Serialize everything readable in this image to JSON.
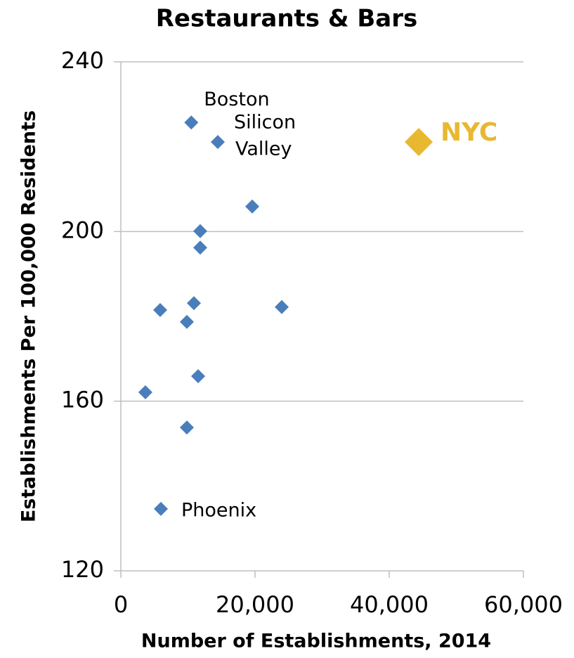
{
  "chart_data": {
    "type": "scatter",
    "title": "Restaurants & Bars",
    "xlabel": "Number of Establishments, 2014",
    "ylabel": "Establishments Per 100,000 Residents",
    "xlim": [
      0,
      60000
    ],
    "xticks": [
      0,
      {
        "value": 20000,
        "label": "20,000"
      },
      {
        "value": 40000,
        "label": "40,000"
      },
      {
        "value": 60000,
        "label": "60,000"
      }
    ],
    "ylim": [
      120,
      240
    ],
    "yticks": [
      120,
      160,
      200,
      240
    ],
    "grid": true,
    "series": [
      {
        "color": "#4a7ebb",
        "x": [
          10500,
          14450,
          19580,
          11830,
          11830,
          10890,
          5860,
          23980,
          9840,
          11520,
          3660,
          9840,
          5970
        ],
        "values": [
          225.7,
          221.1,
          205.9,
          200.1,
          196.2,
          183.1,
          181.5,
          182.2,
          178.7,
          165.9,
          162.1,
          153.8,
          134.6
        ],
        "labels": [
          [
            "Boston"
          ],
          [
            "Silicon",
            "Valley"
          ],
          null,
          null,
          null,
          null,
          null,
          null,
          null,
          null,
          null,
          null,
          [
            "Phoenix"
          ]
        ]
      },
      {
        "color": "#e8b830",
        "x": [
          44400
        ],
        "values": [
          221.1
        ],
        "labels": [
          [
            "NYC"
          ]
        ]
      }
    ]
  }
}
